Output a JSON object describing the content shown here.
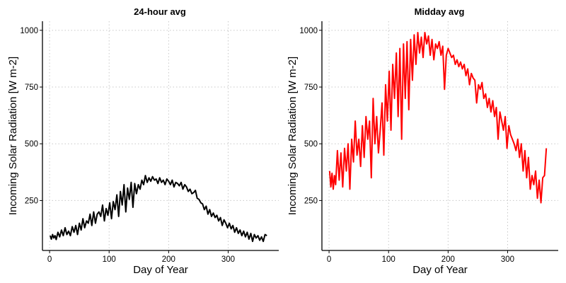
{
  "chart_data": [
    {
      "type": "line",
      "title": "24-hour avg",
      "xlabel": "Day of Year",
      "ylabel": "Incoming Solar Radiation [W m-2]",
      "xlim": [
        -12,
        385
      ],
      "ylim": [
        30,
        1040
      ],
      "xticks": [
        0,
        100,
        200,
        300
      ],
      "xtick_labels": [
        "0",
        "100",
        "200",
        "300"
      ],
      "yticks": [
        250,
        500,
        750,
        1000
      ],
      "ytick_labels": [
        "250",
        "500",
        "750",
        "1000"
      ],
      "grid": true,
      "legend": "none",
      "color": "#000000",
      "series": [
        {
          "x": [
            1,
            3,
            5,
            7,
            9,
            11,
            14,
            17,
            20,
            23,
            26,
            29,
            32,
            35,
            38,
            41,
            44,
            47,
            50,
            53,
            56,
            59,
            62,
            65,
            68,
            71,
            74,
            77,
            80,
            83,
            86,
            89,
            92,
            95,
            98,
            101,
            104,
            107,
            110,
            113,
            116,
            119,
            122,
            125,
            128,
            131,
            134,
            137,
            140,
            143,
            146,
            149,
            152,
            155,
            158,
            161,
            164,
            167,
            170,
            173,
            176,
            179,
            182,
            185,
            188,
            191,
            194,
            197,
            200,
            203,
            206,
            209,
            212,
            215,
            218,
            221,
            224,
            227,
            230,
            233,
            236,
            239,
            242,
            245,
            248,
            251,
            254,
            257,
            260,
            263,
            266,
            269,
            272,
            275,
            278,
            281,
            284,
            287,
            290,
            293,
            296,
            299,
            302,
            305,
            308,
            311,
            314,
            317,
            320,
            323,
            326,
            329,
            332,
            335,
            338,
            341,
            344,
            347,
            350,
            353,
            356,
            359,
            362,
            365
          ],
          "y": [
            95,
            80,
            100,
            85,
            95,
            78,
            110,
            90,
            120,
            95,
            130,
            100,
            115,
            95,
            135,
            110,
            140,
            100,
            150,
            120,
            170,
            130,
            160,
            150,
            190,
            140,
            200,
            150,
            190,
            200,
            180,
            230,
            160,
            215,
            185,
            240,
            170,
            245,
            210,
            275,
            180,
            290,
            230,
            320,
            200,
            305,
            255,
            330,
            220,
            325,
            280,
            320,
            300,
            340,
            320,
            360,
            330,
            350,
            335,
            355,
            340,
            345,
            325,
            350,
            330,
            340,
            320,
            345,
            335,
            320,
            340,
            310,
            330,
            325,
            315,
            330,
            300,
            320,
            310,
            290,
            300,
            280,
            285,
            295,
            260,
            255,
            240,
            235,
            210,
            225,
            190,
            210,
            180,
            195,
            175,
            185,
            160,
            175,
            140,
            165,
            150,
            130,
            150,
            125,
            140,
            110,
            130,
            105,
            120,
            95,
            115,
            90,
            110,
            80,
            105,
            70,
            100,
            85,
            95,
            75,
            90,
            70,
            100,
            95
          ]
        }
      ]
    },
    {
      "type": "line",
      "title": "Midday avg",
      "xlabel": "Day of Year",
      "ylabel": "Incoming Solar Radiation [W m-2]",
      "xlim": [
        -12,
        385
      ],
      "ylim": [
        30,
        1040
      ],
      "xticks": [
        0,
        100,
        200,
        300
      ],
      "xtick_labels": [
        "0",
        "100",
        "200",
        "300"
      ],
      "yticks": [
        250,
        500,
        750,
        1000
      ],
      "ytick_labels": [
        "250",
        "500",
        "750",
        "1000"
      ],
      "grid": true,
      "legend": "none",
      "color": "#ff0000",
      "series": [
        {
          "x": [
            1,
            3,
            5,
            7,
            9,
            11,
            14,
            17,
            20,
            23,
            26,
            29,
            32,
            35,
            38,
            41,
            44,
            47,
            50,
            53,
            56,
            59,
            62,
            65,
            68,
            71,
            74,
            77,
            80,
            83,
            86,
            89,
            92,
            95,
            98,
            101,
            104,
            107,
            110,
            113,
            116,
            119,
            122,
            125,
            128,
            131,
            134,
            137,
            140,
            143,
            146,
            149,
            152,
            155,
            158,
            161,
            164,
            167,
            170,
            173,
            176,
            179,
            182,
            185,
            188,
            191,
            194,
            197,
            200,
            203,
            206,
            209,
            212,
            215,
            218,
            221,
            224,
            227,
            230,
            233,
            236,
            239,
            242,
            245,
            248,
            251,
            254,
            257,
            260,
            263,
            266,
            269,
            272,
            275,
            278,
            281,
            284,
            287,
            290,
            293,
            296,
            299,
            302,
            305,
            308,
            311,
            314,
            317,
            320,
            323,
            326,
            329,
            332,
            335,
            338,
            341,
            344,
            347,
            350,
            353,
            356,
            359,
            362,
            365
          ],
          "y": [
            380,
            310,
            370,
            300,
            360,
            320,
            470,
            340,
            460,
            310,
            480,
            380,
            500,
            300,
            520,
            420,
            600,
            450,
            520,
            400,
            580,
            440,
            620,
            520,
            600,
            350,
            700,
            500,
            620,
            460,
            560,
            680,
            450,
            760,
            600,
            820,
            560,
            850,
            700,
            900,
            620,
            920,
            520,
            940,
            700,
            950,
            650,
            960,
            780,
            980,
            850,
            990,
            900,
            970,
            880,
            990,
            940,
            975,
            890,
            960,
            870,
            940,
            920,
            950,
            890,
            930,
            740,
            890,
            920,
            900,
            880,
            890,
            850,
            870,
            840,
            860,
            830,
            850,
            800,
            830,
            760,
            810,
            790,
            780,
            680,
            760,
            740,
            770,
            700,
            720,
            660,
            700,
            640,
            690,
            620,
            660,
            520,
            640,
            600,
            560,
            620,
            480,
            580,
            540,
            520,
            500,
            470,
            520,
            440,
            500,
            380,
            470,
            350,
            440,
            300,
            360,
            320,
            380,
            260,
            340,
            240,
            350,
            360,
            480
          ]
        }
      ]
    }
  ]
}
